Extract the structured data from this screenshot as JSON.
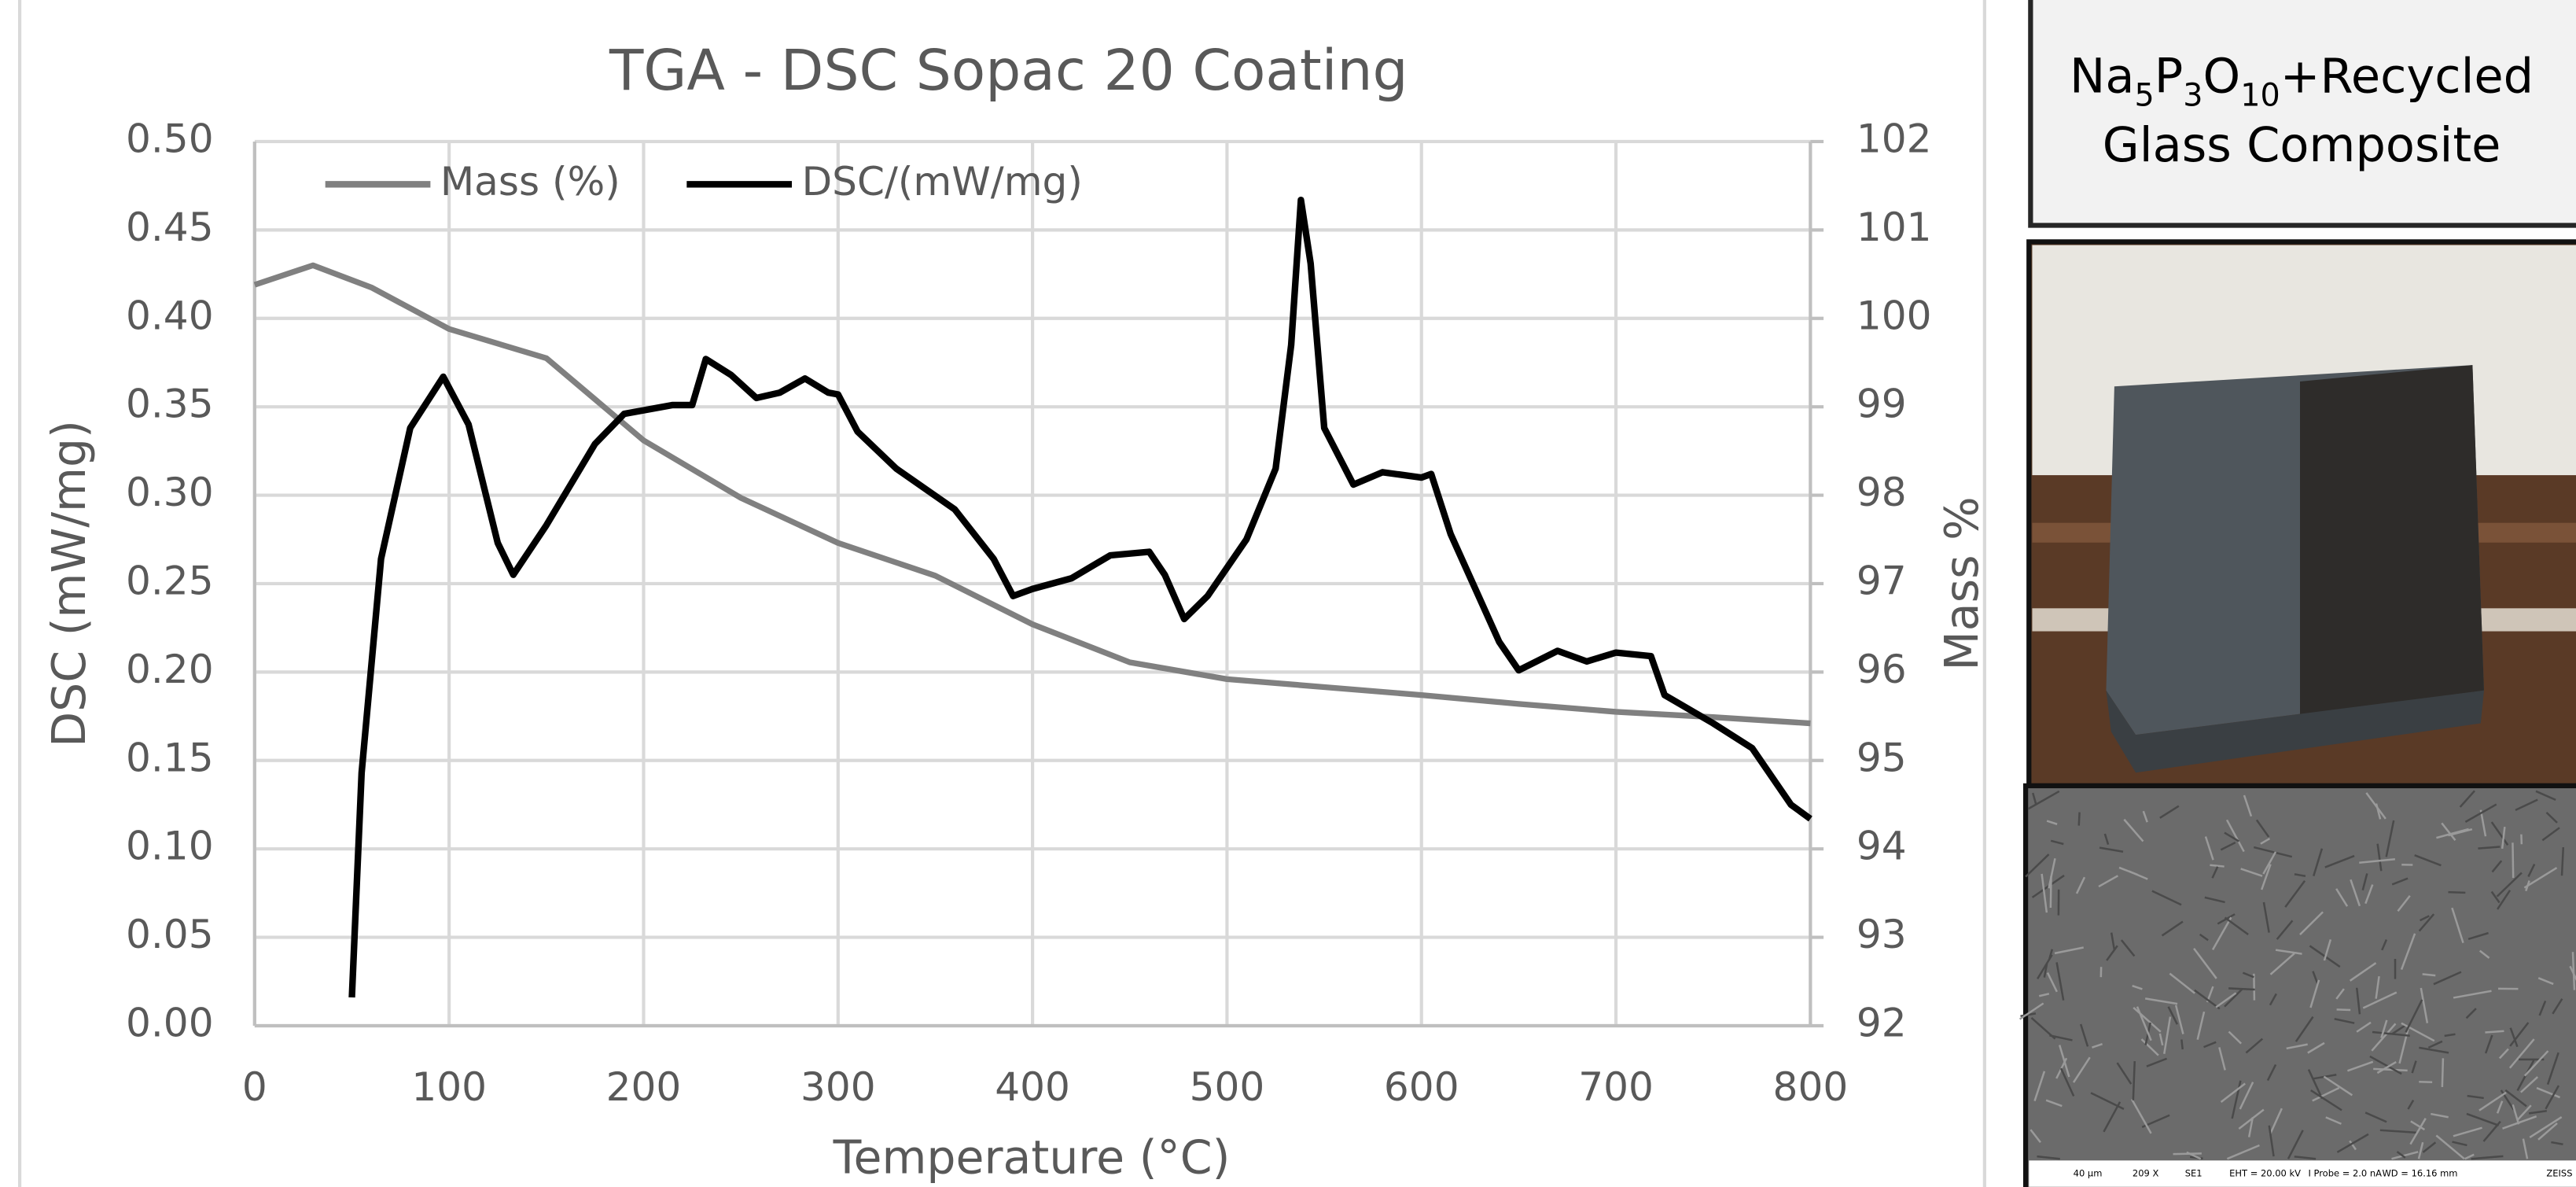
{
  "chart_data": {
    "type": "line",
    "title": "TGA - DSC Sopac 20 Coating",
    "x_label": "Temperature (°C)",
    "y_label": "DSC (mW/mg)",
    "y2_label": "Mass %",
    "xlim": [
      0,
      800
    ],
    "xticks": [
      0,
      100,
      200,
      300,
      400,
      500,
      600,
      700,
      800
    ],
    "ylim": [
      0,
      0.5
    ],
    "yticks": [
      {
        "value": 0,
        "label": "0.00"
      },
      0.05,
      {
        "value": 0.1,
        "label": "0.10"
      },
      0.15,
      {
        "value": 0.2,
        "label": "0.20"
      },
      0.25,
      {
        "value": 0.3,
        "label": "0.30"
      },
      0.35,
      {
        "value": 0.4,
        "label": "0.40"
      },
      0.45,
      {
        "value": 0.5,
        "label": "0.50"
      }
    ],
    "y2lim": [
      92,
      102
    ],
    "y2ticks": [
      92,
      93,
      94,
      95,
      96,
      97,
      98,
      99,
      100,
      101,
      102
    ],
    "grid": true,
    "legend": "top-left",
    "series": [
      {
        "name": "Mass (%)",
        "color": "#808080",
        "axis": "y2",
        "x": [
          0,
          30,
          60,
          100,
          150,
          200,
          250,
          300,
          350,
          400,
          450,
          500,
          550,
          600,
          650,
          700,
          750,
          800
        ],
        "values": [
          100.38,
          100.6,
          100.35,
          99.88,
          99.55,
          98.62,
          97.97,
          97.46,
          97.09,
          96.54,
          96.11,
          95.92,
          95.83,
          95.74,
          95.64,
          95.55,
          95.49,
          95.42
        ]
      },
      {
        "name": "DSC/(mW/mg)",
        "color": "#000000",
        "x": [
          50,
          55,
          65,
          80,
          97,
          110,
          125,
          133,
          150,
          175,
          190,
          215,
          225,
          232,
          245,
          258,
          270,
          283,
          295,
          300,
          310,
          330,
          360,
          380,
          390,
          400,
          420,
          440,
          460,
          468,
          478,
          490,
          510,
          525,
          533,
          538,
          543,
          550,
          565,
          580,
          600,
          605,
          615,
          640,
          650,
          670,
          685,
          700,
          718,
          725,
          750,
          770,
          790,
          800
        ],
        "values": [
          0.016,
          0.143,
          0.264,
          0.338,
          0.367,
          0.34,
          0.273,
          0.255,
          0.283,
          0.329,
          0.346,
          0.351,
          0.351,
          0.377,
          0.368,
          0.355,
          0.358,
          0.366,
          0.358,
          0.357,
          0.336,
          0.315,
          0.292,
          0.264,
          0.243,
          0.247,
          0.253,
          0.266,
          0.268,
          0.255,
          0.23,
          0.243,
          0.275,
          0.315,
          0.385,
          0.467,
          0.431,
          0.338,
          0.306,
          0.313,
          0.31,
          0.312,
          0.278,
          0.217,
          0.201,
          0.212,
          0.206,
          0.211,
          0.209,
          0.187,
          0.171,
          0.157,
          0.125,
          0.117
        ]
      }
    ]
  },
  "panel": {
    "label_line1": [
      "Na",
      "5",
      "P",
      "3",
      "O",
      "10",
      "+Recycled"
    ],
    "label_line2": "Glass Composite",
    "sem_info": [
      "40 µm",
      "209 X",
      "SE1",
      "EHT = 20.00 kV",
      "I Probe = 2.0 nA",
      "WD = 16.16 mm",
      "ZEISS"
    ]
  }
}
